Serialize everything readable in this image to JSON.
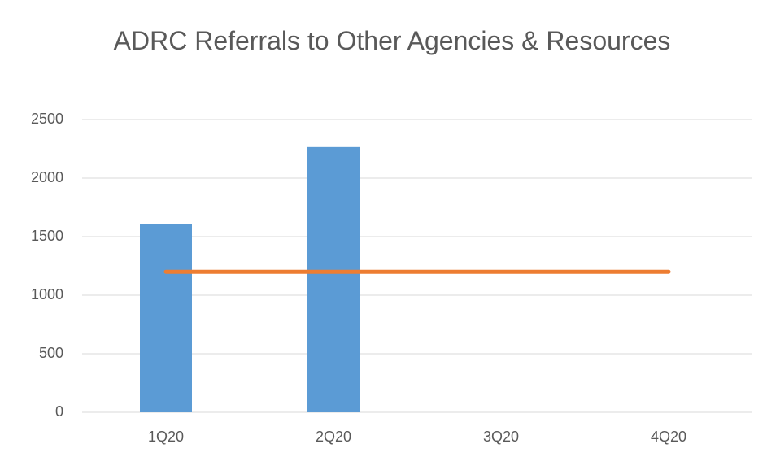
{
  "chart_data": {
    "type": "bar",
    "title": "ADRC Referrals to Other Agencies & Resources",
    "categories": [
      "1Q20",
      "2Q20",
      "3Q20",
      "4Q20"
    ],
    "series": [
      {
        "type": "bar",
        "color": "#5b9bd5",
        "values": [
          1610,
          2265,
          null,
          null
        ]
      },
      {
        "type": "line",
        "color": "#ed7d31",
        "values": [
          1200,
          1200,
          1200,
          1200
        ]
      }
    ],
    "ylim": [
      0,
      2500
    ],
    "yticks": [
      0,
      500,
      1000,
      1500,
      2000,
      2500
    ],
    "grid": true
  }
}
